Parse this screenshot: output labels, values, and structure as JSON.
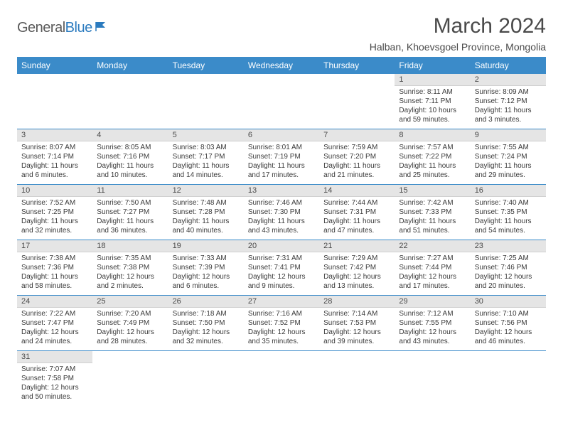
{
  "logo": {
    "text1": "General",
    "text2": "Blue"
  },
  "title": "March 2024",
  "subtitle": "Halban, Khoevsgoel Province, Mongolia",
  "colors": {
    "header_bg": "#3b8bc9",
    "header_text": "#ffffff",
    "daynum_bg": "#e5e5e5",
    "border": "#3b8bc9",
    "text": "#3a3a3a",
    "logo_gray": "#5a5a5a",
    "logo_blue": "#2b7bbf"
  },
  "typography": {
    "title_size": 30,
    "subtitle_size": 14,
    "header_size": 12,
    "cell_size": 10
  },
  "weekdays": [
    "Sunday",
    "Monday",
    "Tuesday",
    "Wednesday",
    "Thursday",
    "Friday",
    "Saturday"
  ],
  "weeks": [
    [
      {
        "n": "",
        "sr": "",
        "ss": "",
        "dl": ""
      },
      {
        "n": "",
        "sr": "",
        "ss": "",
        "dl": ""
      },
      {
        "n": "",
        "sr": "",
        "ss": "",
        "dl": ""
      },
      {
        "n": "",
        "sr": "",
        "ss": "",
        "dl": ""
      },
      {
        "n": "",
        "sr": "",
        "ss": "",
        "dl": ""
      },
      {
        "n": "1",
        "sr": "Sunrise: 8:11 AM",
        "ss": "Sunset: 7:11 PM",
        "dl": "Daylight: 10 hours and 59 minutes."
      },
      {
        "n": "2",
        "sr": "Sunrise: 8:09 AM",
        "ss": "Sunset: 7:12 PM",
        "dl": "Daylight: 11 hours and 3 minutes."
      }
    ],
    [
      {
        "n": "3",
        "sr": "Sunrise: 8:07 AM",
        "ss": "Sunset: 7:14 PM",
        "dl": "Daylight: 11 hours and 6 minutes."
      },
      {
        "n": "4",
        "sr": "Sunrise: 8:05 AM",
        "ss": "Sunset: 7:16 PM",
        "dl": "Daylight: 11 hours and 10 minutes."
      },
      {
        "n": "5",
        "sr": "Sunrise: 8:03 AM",
        "ss": "Sunset: 7:17 PM",
        "dl": "Daylight: 11 hours and 14 minutes."
      },
      {
        "n": "6",
        "sr": "Sunrise: 8:01 AM",
        "ss": "Sunset: 7:19 PM",
        "dl": "Daylight: 11 hours and 17 minutes."
      },
      {
        "n": "7",
        "sr": "Sunrise: 7:59 AM",
        "ss": "Sunset: 7:20 PM",
        "dl": "Daylight: 11 hours and 21 minutes."
      },
      {
        "n": "8",
        "sr": "Sunrise: 7:57 AM",
        "ss": "Sunset: 7:22 PM",
        "dl": "Daylight: 11 hours and 25 minutes."
      },
      {
        "n": "9",
        "sr": "Sunrise: 7:55 AM",
        "ss": "Sunset: 7:24 PM",
        "dl": "Daylight: 11 hours and 29 minutes."
      }
    ],
    [
      {
        "n": "10",
        "sr": "Sunrise: 7:52 AM",
        "ss": "Sunset: 7:25 PM",
        "dl": "Daylight: 11 hours and 32 minutes."
      },
      {
        "n": "11",
        "sr": "Sunrise: 7:50 AM",
        "ss": "Sunset: 7:27 PM",
        "dl": "Daylight: 11 hours and 36 minutes."
      },
      {
        "n": "12",
        "sr": "Sunrise: 7:48 AM",
        "ss": "Sunset: 7:28 PM",
        "dl": "Daylight: 11 hours and 40 minutes."
      },
      {
        "n": "13",
        "sr": "Sunrise: 7:46 AM",
        "ss": "Sunset: 7:30 PM",
        "dl": "Daylight: 11 hours and 43 minutes."
      },
      {
        "n": "14",
        "sr": "Sunrise: 7:44 AM",
        "ss": "Sunset: 7:31 PM",
        "dl": "Daylight: 11 hours and 47 minutes."
      },
      {
        "n": "15",
        "sr": "Sunrise: 7:42 AM",
        "ss": "Sunset: 7:33 PM",
        "dl": "Daylight: 11 hours and 51 minutes."
      },
      {
        "n": "16",
        "sr": "Sunrise: 7:40 AM",
        "ss": "Sunset: 7:35 PM",
        "dl": "Daylight: 11 hours and 54 minutes."
      }
    ],
    [
      {
        "n": "17",
        "sr": "Sunrise: 7:38 AM",
        "ss": "Sunset: 7:36 PM",
        "dl": "Daylight: 11 hours and 58 minutes."
      },
      {
        "n": "18",
        "sr": "Sunrise: 7:35 AM",
        "ss": "Sunset: 7:38 PM",
        "dl": "Daylight: 12 hours and 2 minutes."
      },
      {
        "n": "19",
        "sr": "Sunrise: 7:33 AM",
        "ss": "Sunset: 7:39 PM",
        "dl": "Daylight: 12 hours and 6 minutes."
      },
      {
        "n": "20",
        "sr": "Sunrise: 7:31 AM",
        "ss": "Sunset: 7:41 PM",
        "dl": "Daylight: 12 hours and 9 minutes."
      },
      {
        "n": "21",
        "sr": "Sunrise: 7:29 AM",
        "ss": "Sunset: 7:42 PM",
        "dl": "Daylight: 12 hours and 13 minutes."
      },
      {
        "n": "22",
        "sr": "Sunrise: 7:27 AM",
        "ss": "Sunset: 7:44 PM",
        "dl": "Daylight: 12 hours and 17 minutes."
      },
      {
        "n": "23",
        "sr": "Sunrise: 7:25 AM",
        "ss": "Sunset: 7:46 PM",
        "dl": "Daylight: 12 hours and 20 minutes."
      }
    ],
    [
      {
        "n": "24",
        "sr": "Sunrise: 7:22 AM",
        "ss": "Sunset: 7:47 PM",
        "dl": "Daylight: 12 hours and 24 minutes."
      },
      {
        "n": "25",
        "sr": "Sunrise: 7:20 AM",
        "ss": "Sunset: 7:49 PM",
        "dl": "Daylight: 12 hours and 28 minutes."
      },
      {
        "n": "26",
        "sr": "Sunrise: 7:18 AM",
        "ss": "Sunset: 7:50 PM",
        "dl": "Daylight: 12 hours and 32 minutes."
      },
      {
        "n": "27",
        "sr": "Sunrise: 7:16 AM",
        "ss": "Sunset: 7:52 PM",
        "dl": "Daylight: 12 hours and 35 minutes."
      },
      {
        "n": "28",
        "sr": "Sunrise: 7:14 AM",
        "ss": "Sunset: 7:53 PM",
        "dl": "Daylight: 12 hours and 39 minutes."
      },
      {
        "n": "29",
        "sr": "Sunrise: 7:12 AM",
        "ss": "Sunset: 7:55 PM",
        "dl": "Daylight: 12 hours and 43 minutes."
      },
      {
        "n": "30",
        "sr": "Sunrise: 7:10 AM",
        "ss": "Sunset: 7:56 PM",
        "dl": "Daylight: 12 hours and 46 minutes."
      }
    ],
    [
      {
        "n": "31",
        "sr": "Sunrise: 7:07 AM",
        "ss": "Sunset: 7:58 PM",
        "dl": "Daylight: 12 hours and 50 minutes."
      },
      {
        "n": "",
        "sr": "",
        "ss": "",
        "dl": ""
      },
      {
        "n": "",
        "sr": "",
        "ss": "",
        "dl": ""
      },
      {
        "n": "",
        "sr": "",
        "ss": "",
        "dl": ""
      },
      {
        "n": "",
        "sr": "",
        "ss": "",
        "dl": ""
      },
      {
        "n": "",
        "sr": "",
        "ss": "",
        "dl": ""
      },
      {
        "n": "",
        "sr": "",
        "ss": "",
        "dl": ""
      }
    ]
  ]
}
